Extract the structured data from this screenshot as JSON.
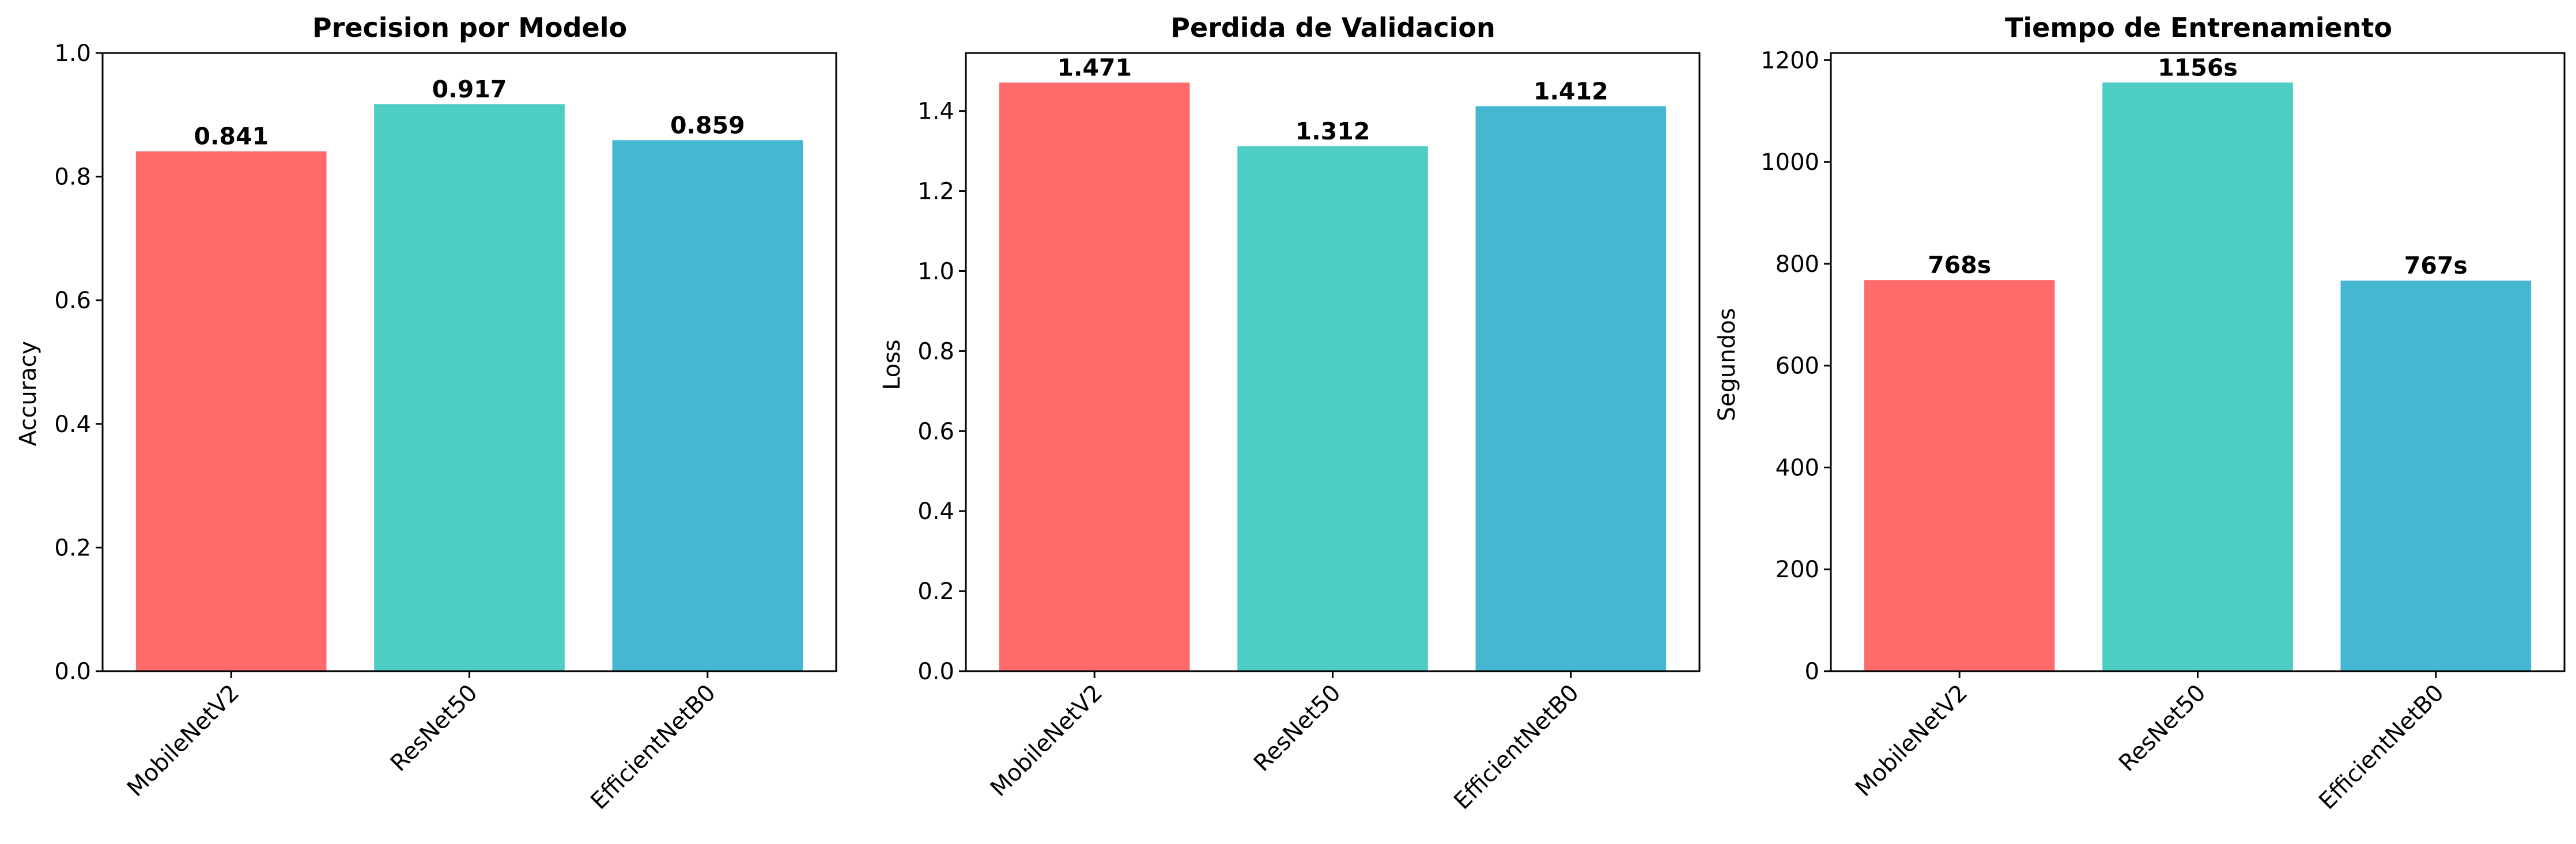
{
  "chart_data": [
    {
      "type": "bar",
      "title": "Precision por Modelo",
      "xlabel": "",
      "ylabel": "Accuracy",
      "categories": [
        "MobileNetV2",
        "ResNet50",
        "EfficientNetB0"
      ],
      "values": [
        0.841,
        0.917,
        0.859
      ],
      "value_labels": [
        "0.841",
        "0.917",
        "0.859"
      ],
      "ylim": [
        0,
        1.0
      ],
      "yticks": [
        0.0,
        0.2,
        0.4,
        0.6,
        0.8,
        1.0
      ],
      "ytick_labels": [
        "0.0",
        "0.2",
        "0.4",
        "0.6",
        "0.8",
        "1.0"
      ],
      "colors": [
        "#FF6B6B",
        "#4ECDC4",
        "#45B7D1"
      ],
      "grid": false
    },
    {
      "type": "bar",
      "title": "Perdida de Validacion",
      "xlabel": "",
      "ylabel": "Loss",
      "categories": [
        "MobileNetV2",
        "ResNet50",
        "EfficientNetB0"
      ],
      "values": [
        1.471,
        1.312,
        1.412
      ],
      "value_labels": [
        "1.471",
        "1.312",
        "1.412"
      ],
      "ylim": [
        0,
        1.545
      ],
      "yticks": [
        0.0,
        0.2,
        0.4,
        0.6,
        0.8,
        1.0,
        1.2,
        1.4
      ],
      "ytick_labels": [
        "0.0",
        "0.2",
        "0.4",
        "0.6",
        "0.8",
        "1.0",
        "1.2",
        "1.4"
      ],
      "colors": [
        "#FF6B6B",
        "#4ECDC4",
        "#45B7D1"
      ],
      "grid": false
    },
    {
      "type": "bar",
      "title": "Tiempo de Entrenamiento",
      "xlabel": "",
      "ylabel": "Segundos",
      "categories": [
        "MobileNetV2",
        "ResNet50",
        "EfficientNetB0"
      ],
      "values": [
        768,
        1156,
        767
      ],
      "value_labels": [
        "768s",
        "1156s",
        "767s"
      ],
      "ylim": [
        0,
        1214
      ],
      "yticks": [
        0,
        200,
        400,
        600,
        800,
        1000,
        1200
      ],
      "ytick_labels": [
        "0",
        "200",
        "400",
        "600",
        "800",
        "1000",
        "1200"
      ],
      "colors": [
        "#FF6B6B",
        "#4ECDC4",
        "#45B7D1"
      ],
      "grid": false
    }
  ]
}
